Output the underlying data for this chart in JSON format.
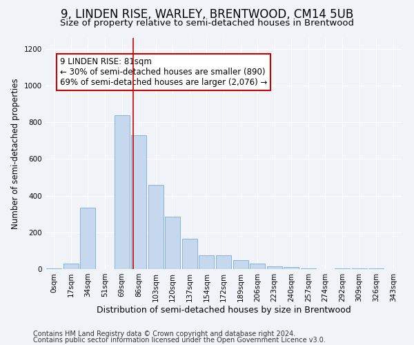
{
  "title": "9, LINDEN RISE, WARLEY, BRENTWOOD, CM14 5UB",
  "subtitle": "Size of property relative to semi-detached houses in Brentwood",
  "xlabel": "Distribution of semi-detached houses by size in Brentwood",
  "ylabel": "Number of semi-detached properties",
  "categories": [
    "0sqm",
    "17sqm",
    "34sqm",
    "51sqm",
    "69sqm",
    "86sqm",
    "103sqm",
    "120sqm",
    "137sqm",
    "154sqm",
    "172sqm",
    "189sqm",
    "206sqm",
    "223sqm",
    "240sqm",
    "257sqm",
    "274sqm",
    "292sqm",
    "309sqm",
    "326sqm",
    "343sqm"
  ],
  "values": [
    5,
    30,
    335,
    0,
    840,
    730,
    460,
    285,
    165,
    75,
    75,
    50,
    30,
    15,
    10,
    5,
    0,
    3,
    3,
    2,
    0
  ],
  "bar_color": "#c5d8ee",
  "bar_edge_color": "#7aaed4",
  "vline_x": 4.68,
  "vline_color": "#cc0000",
  "annotation_text": "9 LINDEN RISE: 81sqm\n← 30% of semi-detached houses are smaller (890)\n69% of semi-detached houses are larger (2,076) →",
  "annotation_box_color": "#ffffff",
  "annotation_box_edge": "#cc0000",
  "ylim": [
    0,
    1260
  ],
  "yticks": [
    0,
    200,
    400,
    600,
    800,
    1000,
    1200
  ],
  "footer1": "Contains HM Land Registry data © Crown copyright and database right 2024.",
  "footer2": "Contains public sector information licensed under the Open Government Licence v3.0.",
  "bg_color": "#f0f4f8",
  "plot_bg_color": "#f0f4f8",
  "title_fontsize": 12,
  "subtitle_fontsize": 9.5,
  "xlabel_fontsize": 9,
  "ylabel_fontsize": 8.5,
  "tick_fontsize": 7.5,
  "annotation_fontsize": 8.5,
  "footer_fontsize": 7
}
